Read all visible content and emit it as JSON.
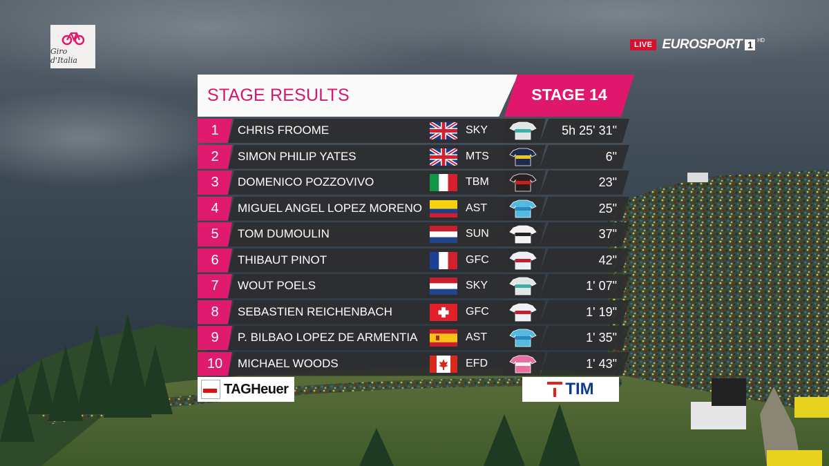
{
  "broadcast": {
    "event_logo_text": "Giro d'Italia",
    "live_label": "LIVE",
    "channel_name": "EUROSPORT",
    "channel_number": "1",
    "channel_hd": "HD"
  },
  "header": {
    "title": "STAGE RESULTS",
    "stage": "STAGE 14"
  },
  "results": [
    {
      "rank": "1",
      "name": "CHRIS FROOME",
      "team": "SKY",
      "flag": "gb-flag",
      "jersey": "sky-jersey",
      "time": "5h 25' 31\""
    },
    {
      "rank": "2",
      "name": "SIMON PHILIP YATES",
      "team": "MTS",
      "flag": "gb-flag",
      "jersey": "mts-jersey",
      "time": "6\""
    },
    {
      "rank": "3",
      "name": "DOMENICO POZZOVIVO",
      "team": "TBM",
      "flag": "it-flag",
      "jersey": "tbm-jersey",
      "time": "23\""
    },
    {
      "rank": "4",
      "name": "MIGUEL ANGEL LOPEZ MORENO",
      "team": "AST",
      "flag": "co-flag",
      "jersey": "ast-jersey",
      "time": "25\""
    },
    {
      "rank": "5",
      "name": "TOM DUMOULIN",
      "team": "SUN",
      "flag": "nl-flag",
      "jersey": "sun-jersey",
      "time": "37\""
    },
    {
      "rank": "6",
      "name": "THIBAUT PINOT",
      "team": "GFC",
      "flag": "fr-flag",
      "jersey": "gfc-jersey",
      "time": "42\""
    },
    {
      "rank": "7",
      "name": "WOUT POELS",
      "team": "SKY",
      "flag": "nl-flag",
      "jersey": "sky-jersey",
      "time": "1' 07\""
    },
    {
      "rank": "8",
      "name": "SEBASTIEN REICHENBACH",
      "team": "GFC",
      "flag": "ch-flag",
      "jersey": "gfc-jersey",
      "time": "1' 19\""
    },
    {
      "rank": "9",
      "name": "P. BILBAO LOPEZ DE ARMENTIA",
      "team": "AST",
      "flag": "es-flag",
      "jersey": "ast-jersey",
      "time": "1' 35\""
    },
    {
      "rank": "10",
      "name": "MICHAEL WOODS",
      "team": "EFD",
      "flag": "ca-flag",
      "jersey": "efd-jersey",
      "time": "1' 43\""
    }
  ],
  "sponsors": {
    "left": "TAGHeuer",
    "right": "TIM"
  },
  "colors": {
    "accent_pink": "#e0186d",
    "row_bg": "#2d2d2f",
    "header_bg": "#fafafa"
  }
}
